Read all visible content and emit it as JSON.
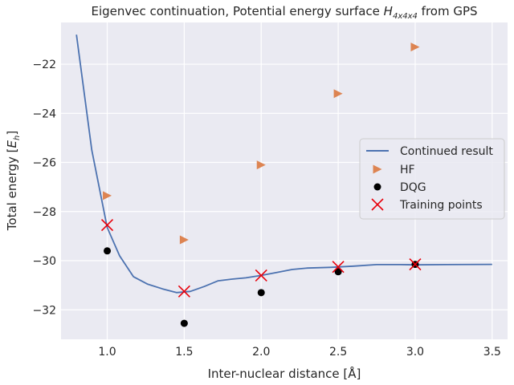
{
  "chart_data": {
    "type": "line",
    "title_prefix": "Eigenvec continuation, Potential energy surface ",
    "title_symbol": "H",
    "title_subscript": "4x4x4",
    "title_suffix": " from GPS",
    "xlabel": "Inter-nuclear distance [Å]",
    "ylabel_main": "Total energy [",
    "ylabel_symbol": "E",
    "ylabel_subscript": "h",
    "ylabel_close": "]",
    "xlim": [
      0.7,
      3.6
    ],
    "ylim": [
      -33.2,
      -20.3
    ],
    "xticks": [
      1.0,
      1.5,
      2.0,
      2.5,
      3.0,
      3.5
    ],
    "xtick_labels": [
      "1.0",
      "1.5",
      "2.0",
      "2.5",
      "3.0",
      "3.5"
    ],
    "yticks": [
      -32,
      -30,
      -28,
      -26,
      -24,
      -22
    ],
    "ytick_labels": [
      "−32",
      "−30",
      "−28",
      "−26",
      "−24",
      "−22"
    ],
    "grid": true,
    "legend_position": "right",
    "series": [
      {
        "name": "Continued result",
        "kind": "line",
        "color": "#4c72b0",
        "x": [
          0.8,
          0.9,
          1.0,
          1.08,
          1.17,
          1.26,
          1.36,
          1.45,
          1.54,
          1.63,
          1.72,
          1.81,
          1.9,
          2.0,
          2.1,
          2.2,
          2.3,
          2.45,
          2.6,
          2.75,
          2.9,
          3.0,
          3.2,
          3.5
        ],
        "y": [
          -20.8,
          -25.5,
          -28.65,
          -29.8,
          -30.65,
          -30.95,
          -31.15,
          -31.3,
          -31.25,
          -31.05,
          -30.82,
          -30.75,
          -30.7,
          -30.6,
          -30.48,
          -30.36,
          -30.3,
          -30.27,
          -30.22,
          -30.16,
          -30.16,
          -30.17,
          -30.16,
          -30.15
        ]
      },
      {
        "name": "HF",
        "kind": "triangle",
        "color": "#dd8452",
        "x": [
          1.0,
          1.5,
          2.0,
          2.5,
          3.0
        ],
        "y": [
          -27.35,
          -29.15,
          -26.1,
          -23.2,
          -21.3
        ]
      },
      {
        "name": "DQG",
        "kind": "dot",
        "color": "#000000",
        "x": [
          1.0,
          1.5,
          2.0,
          2.5,
          3.0
        ],
        "y": [
          -29.6,
          -32.55,
          -31.3,
          -30.45,
          -30.15
        ]
      },
      {
        "name": "Training points",
        "kind": "x",
        "color": "#e8000b",
        "x": [
          1.0,
          1.5,
          2.0,
          2.5,
          3.0
        ],
        "y": [
          -28.55,
          -31.25,
          -30.6,
          -30.25,
          -30.15
        ]
      }
    ]
  },
  "colors": {
    "plot_background": "#eaeaf2",
    "grid": "#ffffff"
  }
}
